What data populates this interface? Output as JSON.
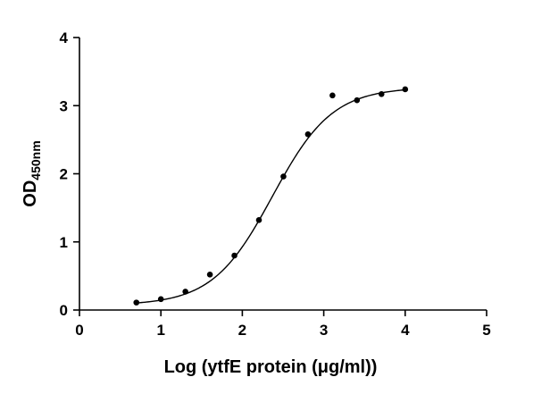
{
  "chart_data": {
    "type": "scatter",
    "title": "",
    "xlabel": "Log (ytfE protein (μg/ml))",
    "ylabel": {
      "main": "OD",
      "subscript": "450nm"
    },
    "xlim": [
      0,
      5
    ],
    "ylim": [
      0,
      4
    ],
    "x_ticks": [
      "0",
      "1",
      "2",
      "3",
      "4",
      "5"
    ],
    "y_ticks": [
      "0",
      "1",
      "2",
      "3",
      "4"
    ],
    "grid": false,
    "legend": "none",
    "marker_color": "#000000",
    "line_color": "#000000",
    "series": [
      {
        "points": [
          {
            "x": 0.699,
            "y": 0.11
          },
          {
            "x": 1.0,
            "y": 0.16
          },
          {
            "x": 1.301,
            "y": 0.27
          },
          {
            "x": 1.602,
            "y": 0.52
          },
          {
            "x": 1.903,
            "y": 0.8
          },
          {
            "x": 2.204,
            "y": 1.32
          },
          {
            "x": 2.505,
            "y": 1.96
          },
          {
            "x": 2.806,
            "y": 2.58
          },
          {
            "x": 3.107,
            "y": 3.15
          },
          {
            "x": 3.408,
            "y": 3.08
          },
          {
            "x": 3.709,
            "y": 3.17
          },
          {
            "x": 4.0,
            "y": 3.24
          }
        ],
        "fit": {
          "model": "four-parameter logistic",
          "bottom": 0.07,
          "top": 3.27,
          "log_ec50": 2.37,
          "hill_slope": 1.18,
          "x_range": [
            0.699,
            4.0
          ]
        }
      }
    ]
  }
}
